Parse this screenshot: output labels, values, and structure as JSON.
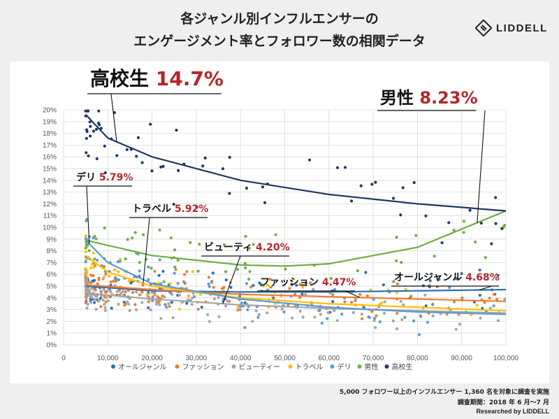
{
  "header": {
    "title_line1": "各ジャンル別インフルエンサーの",
    "title_line2": "エンゲージメント率とフォロワー数の相関データ",
    "logo_text": "LIDDELL"
  },
  "footer": {
    "note1": "5,000 フォロワー以上のインフルエンサー 1,360 名を対象に調査を実施",
    "note2": "調査期間：2018 年 6 月～7 月",
    "note3": "Researched by LIDDELL"
  },
  "chart_data": {
    "type": "scatter",
    "title": "",
    "xlabel": "",
    "ylabel": "",
    "xlim": [
      0,
      100000
    ],
    "ylim": [
      0,
      20
    ],
    "x_ticks": [
      "0",
      "10,000",
      "20,000",
      "30,000",
      "40,000",
      "50,000",
      "60,000",
      "70,000",
      "80,000",
      "90,000",
      "100,000"
    ],
    "y_ticks": [
      "0%",
      "1%",
      "2%",
      "3%",
      "4%",
      "5%",
      "6%",
      "7%",
      "8%",
      "9%",
      "10%",
      "11%",
      "12%",
      "13%",
      "14%",
      "15%",
      "16%",
      "17%",
      "18%",
      "19%",
      "20%"
    ],
    "grid": true,
    "legend_position": "bottom",
    "series": [
      {
        "name": "オールジャンル",
        "color": "#2e6db4",
        "trend": [
          [
            5000,
            5.0
          ],
          [
            20000,
            4.6
          ],
          [
            40000,
            4.5
          ],
          [
            60000,
            4.5
          ],
          [
            80000,
            4.6
          ],
          [
            100000,
            4.7
          ]
        ]
      },
      {
        "name": "ファッション",
        "color": "#ed7d31",
        "trend": [
          [
            5000,
            5.1
          ],
          [
            20000,
            4.7
          ],
          [
            40000,
            4.3
          ],
          [
            60000,
            4.1
          ],
          [
            80000,
            3.9
          ],
          [
            100000,
            3.7
          ]
        ]
      },
      {
        "name": "ビューティー",
        "color": "#a5a5a5",
        "trend": [
          [
            5000,
            4.4
          ],
          [
            20000,
            3.9
          ],
          [
            40000,
            3.4
          ],
          [
            60000,
            3.1
          ],
          [
            80000,
            2.9
          ],
          [
            100000,
            2.7
          ]
        ]
      },
      {
        "name": "トラベル",
        "color": "#ffc000",
        "trend": [
          [
            5000,
            7.6
          ],
          [
            10000,
            6.2
          ],
          [
            20000,
            5.0
          ],
          [
            40000,
            4.0
          ],
          [
            60000,
            3.5
          ],
          [
            80000,
            3.2
          ],
          [
            100000,
            2.9
          ]
        ]
      },
      {
        "name": "デリ",
        "color": "#5b9bd5",
        "trend": [
          [
            5000,
            8.9
          ],
          [
            10000,
            7.0
          ],
          [
            20000,
            5.2
          ],
          [
            40000,
            3.9
          ],
          [
            60000,
            3.2
          ],
          [
            80000,
            2.8
          ],
          [
            100000,
            2.6
          ]
        ]
      },
      {
        "name": "男性",
        "color": "#70ad47",
        "trend": [
          [
            5000,
            8.9
          ],
          [
            20000,
            7.6
          ],
          [
            40000,
            6.8
          ],
          [
            50000,
            6.7
          ],
          [
            60000,
            6.9
          ],
          [
            80000,
            8.3
          ],
          [
            100000,
            11.4
          ]
        ]
      },
      {
        "name": "高校生",
        "color": "#203864",
        "trend": [
          [
            5000,
            19.6
          ],
          [
            10000,
            17.6
          ],
          [
            20000,
            16.0
          ],
          [
            40000,
            14.0
          ],
          [
            60000,
            12.8
          ],
          [
            80000,
            12.0
          ],
          [
            100000,
            11.4
          ]
        ]
      }
    ],
    "annotations": [
      {
        "label": "高校生",
        "value": "14.7%",
        "series": "高校生"
      },
      {
        "label": "男性",
        "value": "8.23%",
        "series": "男性"
      },
      {
        "label": "デリ",
        "value": "5.79%",
        "series": "デリ"
      },
      {
        "label": "トラベル",
        "value": "5.92%",
        "series": "トラベル"
      },
      {
        "label": "ビューティ",
        "value": "4.20%",
        "series": "ビューティー"
      },
      {
        "label": "ファッション",
        "value": "4.47%",
        "series": "ファッション"
      },
      {
        "label": "オールジャンル",
        "value": "4.68%",
        "series": "オールジャンル"
      }
    ],
    "annotation_value_color": "#b5262b"
  }
}
